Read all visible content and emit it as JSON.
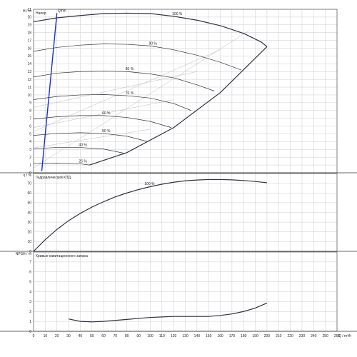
{
  "chart_data": [
    {
      "type": "line",
      "title": "Напор",
      "ylabel": "H / m",
      "xlabel": "",
      "xlim": [
        0,
        260
      ],
      "ylim": [
        0,
        21
      ],
      "xticks": [
        0,
        10,
        20,
        30,
        40,
        50,
        60,
        70,
        80,
        90,
        100,
        110,
        120,
        130,
        140,
        150,
        160,
        170,
        180,
        190,
        200,
        210,
        220,
        230,
        240,
        250,
        260
      ],
      "yticks": [
        0,
        1,
        2,
        3,
        4,
        5,
        6,
        7,
        8,
        9,
        10,
        11,
        12,
        13,
        14,
        15,
        16,
        17,
        18,
        19,
        20,
        21
      ],
      "grid": true,
      "colors": {
        "curve": "#2c3341",
        "ref": "#bbbbbb",
        "npsh_line": "#1a2fd0"
      },
      "efficiency_labels": [
        "25 %",
        "40 %",
        "50 %",
        "60 %",
        "70 %",
        "80 %",
        "90 %",
        "100 %"
      ],
      "series": [
        {
          "name": "100 %",
          "x": [
            0,
            20,
            40,
            60,
            80,
            100,
            120,
            140,
            160,
            180,
            195,
            200
          ],
          "values": [
            19.4,
            19.9,
            20.2,
            20.45,
            20.5,
            20.45,
            20.1,
            19.6,
            18.9,
            17.9,
            16.8,
            16.2
          ]
        },
        {
          "name": "90 %",
          "x": [
            0,
            20,
            40,
            60,
            80,
            100,
            120,
            140,
            160,
            178
          ],
          "values": [
            15.6,
            16.1,
            16.4,
            16.55,
            16.5,
            16.3,
            15.8,
            15.1,
            14.2,
            13.2
          ]
        },
        {
          "name": "80 %",
          "x": [
            0,
            20,
            40,
            60,
            80,
            100,
            120,
            140,
            155
          ],
          "values": [
            12.3,
            12.8,
            13.0,
            13.05,
            13.0,
            12.7,
            12.2,
            11.3,
            10.5
          ]
        },
        {
          "name": "70 %",
          "x": [
            0,
            20,
            40,
            60,
            80,
            100,
            120,
            135
          ],
          "values": [
            9.4,
            9.8,
            10.0,
            10.05,
            9.9,
            9.6,
            8.9,
            8.0
          ]
        },
        {
          "name": "60 %",
          "x": [
            0,
            20,
            40,
            60,
            80,
            100,
            118
          ],
          "values": [
            6.9,
            7.2,
            7.35,
            7.35,
            7.1,
            6.6,
            5.8
          ]
        },
        {
          "name": "50 %",
          "x": [
            0,
            20,
            40,
            60,
            80,
            98
          ],
          "values": [
            4.8,
            5.05,
            5.15,
            5.05,
            4.7,
            4.0
          ]
        },
        {
          "name": "40 %",
          "x": [
            0,
            20,
            40,
            60,
            78
          ],
          "values": [
            3.1,
            3.25,
            3.25,
            3.05,
            2.5
          ]
        },
        {
          "name": "25 %",
          "x": [
            0,
            20,
            40,
            48
          ],
          "values": [
            1.2,
            1.25,
            1.15,
            1.0
          ]
        },
        {
          "name": "limit",
          "x": [
            48,
            80,
            120,
            160,
            200
          ],
          "values": [
            1.0,
            2.6,
            5.8,
            10.3,
            16.2
          ]
        },
        {
          "name": "Qmin",
          "x": [
            7,
            20
          ],
          "values": [
            0.2,
            20.5
          ]
        }
      ],
      "annotations": [
        "Qmin"
      ]
    },
    {
      "type": "line",
      "title": "Гидравлический КПД",
      "ylabel": "η / %",
      "xlabel": "",
      "xlim": [
        0,
        260
      ],
      "ylim": [
        0,
        80
      ],
      "xticks": [
        0,
        10,
        20,
        30,
        40,
        50,
        60,
        70,
        80,
        90,
        100,
        110,
        120,
        130,
        140,
        150,
        160,
        170,
        180,
        190,
        200,
        210,
        220,
        230,
        240,
        250,
        260
      ],
      "yticks": [
        0,
        10,
        20,
        30,
        40,
        50,
        60,
        70
      ],
      "grid": true,
      "series": [
        {
          "name": "100 %",
          "x": [
            0,
            10,
            20,
            30,
            40,
            50,
            60,
            70,
            80,
            90,
            100,
            110,
            120,
            130,
            140,
            150,
            160,
            170,
            180,
            190,
            200
          ],
          "values": [
            0,
            12,
            22.5,
            31.5,
            39,
            45.5,
            51,
            56,
            60,
            63.5,
            66.5,
            69,
            71,
            72.5,
            73.3,
            73.8,
            73.8,
            73.5,
            72.8,
            71.8,
            70.5
          ]
        }
      ]
    },
    {
      "type": "line",
      "title": "Кривые кавитационного запаса",
      "ylabel": "NPSH / m",
      "xlabel": "Q / m³/h",
      "xlim": [
        0,
        260
      ],
      "ylim": [
        0,
        8
      ],
      "xticks": [
        0,
        10,
        20,
        30,
        40,
        50,
        60,
        70,
        80,
        90,
        100,
        110,
        120,
        130,
        140,
        150,
        160,
        170,
        180,
        190,
        200,
        210,
        220,
        230,
        240,
        250,
        260
      ],
      "yticks": [
        0,
        1,
        2,
        3,
        4,
        5,
        6,
        7
      ],
      "grid": true,
      "series": [
        {
          "name": "NPSH",
          "x": [
            30,
            40,
            50,
            60,
            70,
            80,
            90,
            100,
            110,
            120,
            130,
            140,
            150,
            160,
            170,
            180,
            190,
            200
          ],
          "values": [
            1.25,
            1.0,
            0.95,
            1.0,
            1.1,
            1.2,
            1.3,
            1.4,
            1.45,
            1.5,
            1.5,
            1.5,
            1.5,
            1.6,
            1.75,
            2.0,
            2.35,
            2.85
          ]
        }
      ]
    }
  ]
}
